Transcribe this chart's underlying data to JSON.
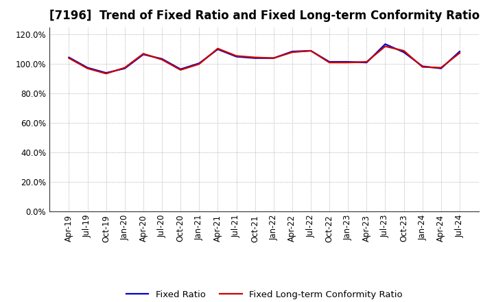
{
  "title": "[7196]  Trend of Fixed Ratio and Fixed Long-term Conformity Ratio",
  "x_labels": [
    "Apr-19",
    "Jul-19",
    "Oct-19",
    "Jan-20",
    "Apr-20",
    "Jul-20",
    "Oct-20",
    "Jan-21",
    "Apr-21",
    "Jul-21",
    "Oct-21",
    "Jan-22",
    "Apr-22",
    "Jul-22",
    "Oct-22",
    "Jan-23",
    "Apr-23",
    "Jul-23",
    "Oct-23",
    "Jan-24",
    "Apr-24",
    "Jul-24"
  ],
  "fixed_ratio": [
    104.5,
    97.5,
    94.0,
    97.0,
    106.5,
    103.5,
    96.5,
    100.5,
    110.0,
    105.0,
    104.0,
    104.0,
    108.5,
    109.0,
    101.5,
    101.5,
    101.0,
    113.5,
    108.0,
    98.5,
    97.0,
    108.5
  ],
  "fixed_lt_ratio": [
    104.0,
    97.0,
    93.5,
    97.5,
    107.0,
    103.0,
    96.0,
    100.0,
    110.5,
    105.5,
    104.5,
    104.0,
    108.0,
    109.0,
    101.0,
    101.0,
    101.5,
    112.0,
    109.0,
    98.0,
    97.5,
    107.5
  ],
  "fixed_ratio_color": "#0000cc",
  "fixed_lt_ratio_color": "#cc0000",
  "ylim": [
    0,
    125
  ],
  "yticks": [
    0,
    20,
    40,
    60,
    80,
    100,
    120
  ],
  "ytick_labels": [
    "0.0%",
    "20.0%",
    "40.0%",
    "60.0%",
    "80.0%",
    "100.0%",
    "120.0%"
  ],
  "background_color": "#ffffff",
  "plot_bg_color": "#ffffff",
  "grid_color": "#999999",
  "legend_fixed": "Fixed Ratio",
  "legend_fixed_lt": "Fixed Long-term Conformity Ratio",
  "title_fontsize": 12,
  "axis_fontsize": 8.5,
  "legend_fontsize": 9.5,
  "line_width": 1.6
}
